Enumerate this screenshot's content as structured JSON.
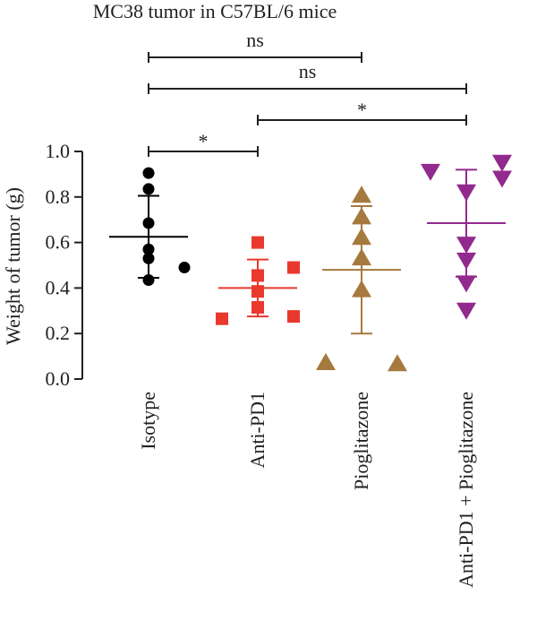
{
  "chart_data": {
    "type": "scatter",
    "title": "MC38 tumor in C57BL/6 mice",
    "ylabel": "Weight of tumor (g)",
    "xlabel": "",
    "ylim": [
      0,
      1.0
    ],
    "yticks": [
      "0.0",
      "0.2",
      "0.4",
      "0.6",
      "0.8",
      "1.0"
    ],
    "categories": [
      "Isotype",
      "Anti-PD1",
      "Pioglitazone",
      "Anti-PD1 + Pioglitazone"
    ],
    "groups": [
      {
        "name": "Isotype",
        "marker": "circle",
        "color": "#000000",
        "points": [
          {
            "offset": 0.0,
            "y": 0.905
          },
          {
            "offset": 0.0,
            "y": 0.835
          },
          {
            "offset": 0.0,
            "y": 0.685
          },
          {
            "offset": 0.0,
            "y": 0.57
          },
          {
            "offset": 0.0,
            "y": 0.53
          },
          {
            "offset": 0.0,
            "y": 0.435
          },
          {
            "offset": 0.5,
            "y": 0.49
          }
        ],
        "mean": 0.625,
        "sd": 0.18
      },
      {
        "name": "Anti-PD1",
        "marker": "square",
        "color": "#e8392c",
        "points": [
          {
            "offset": 0.0,
            "y": 0.6
          },
          {
            "offset": 0.0,
            "y": 0.455
          },
          {
            "offset": 0.0,
            "y": 0.385
          },
          {
            "offset": 0.0,
            "y": 0.315
          },
          {
            "offset": 0.5,
            "y": 0.49
          },
          {
            "offset": 0.5,
            "y": 0.275
          },
          {
            "offset": -0.5,
            "y": 0.265
          }
        ],
        "mean": 0.4,
        "sd": 0.125
      },
      {
        "name": "Pioglitazone",
        "marker": "triangle-up",
        "color": "#a6793e",
        "points": [
          {
            "offset": 0.0,
            "y": 0.81
          },
          {
            "offset": 0.0,
            "y": 0.715
          },
          {
            "offset": 0.0,
            "y": 0.625
          },
          {
            "offset": 0.0,
            "y": 0.535
          },
          {
            "offset": 0.0,
            "y": 0.395
          },
          {
            "offset": -0.5,
            "y": 0.075
          },
          {
            "offset": 0.5,
            "y": 0.07
          }
        ],
        "mean": 0.48,
        "sd": 0.28
      },
      {
        "name": "Anti-PD1 + Pioglitazone",
        "marker": "triangle-down",
        "color": "#922a8e",
        "points": [
          {
            "offset": -0.5,
            "y": 0.91
          },
          {
            "offset": 0.5,
            "y": 0.95
          },
          {
            "offset": 0.5,
            "y": 0.88
          },
          {
            "offset": 0.0,
            "y": 0.82
          },
          {
            "offset": 0.0,
            "y": 0.59
          },
          {
            "offset": 0.0,
            "y": 0.52
          },
          {
            "offset": 0.0,
            "y": 0.42
          },
          {
            "offset": 0.0,
            "y": 0.3
          }
        ],
        "mean": 0.685,
        "sd": 0.235
      }
    ],
    "significance": [
      {
        "from": 0,
        "to": 2,
        "label": "ns",
        "level": 3
      },
      {
        "from": 0,
        "to": 3,
        "label": "ns",
        "level": 2
      },
      {
        "from": 1,
        "to": 3,
        "label": "*",
        "level": 1
      },
      {
        "from": 0,
        "to": 1,
        "label": "*",
        "level": 0
      }
    ]
  }
}
